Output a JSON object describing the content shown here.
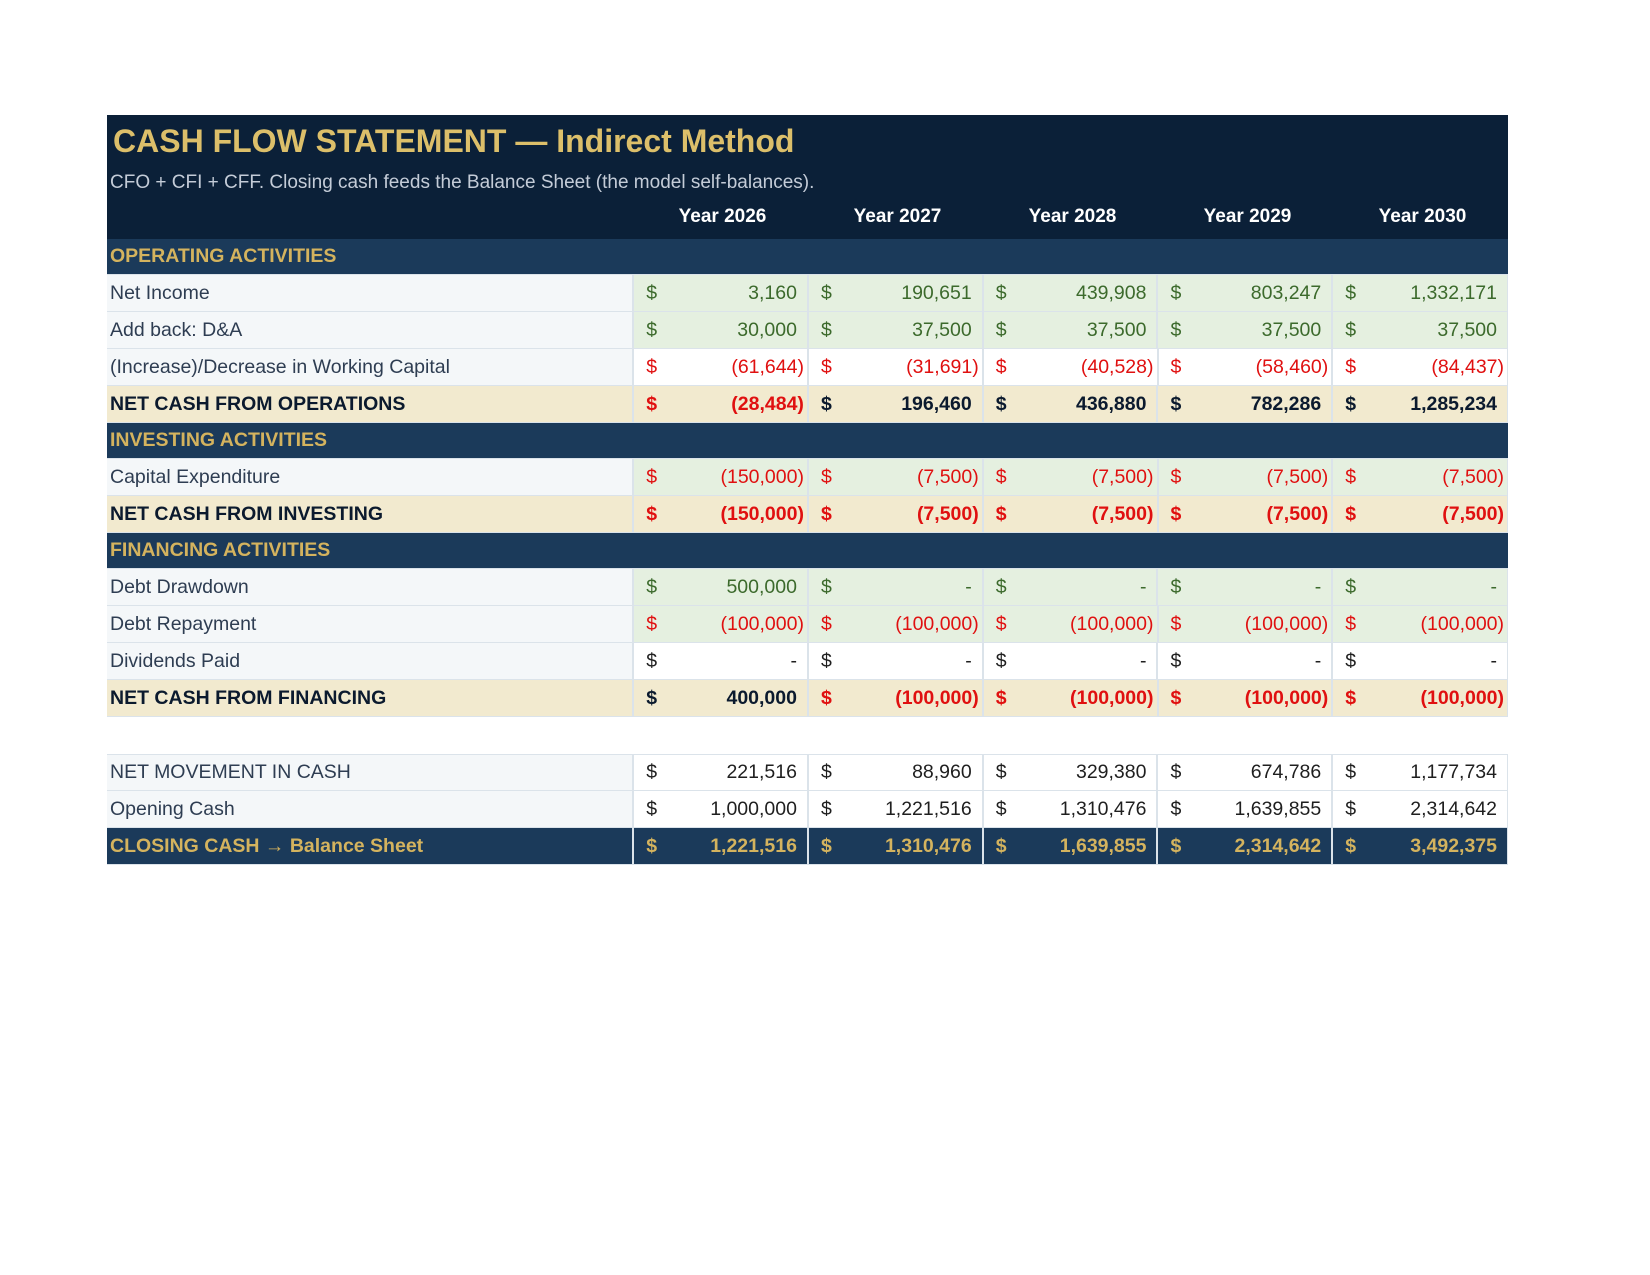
{
  "title": "CASH FLOW STATEMENT — Indirect Method",
  "subtitle": "CFO + CFI + CFF. Closing cash feeds the Balance Sheet (the model self-balances).",
  "years": [
    "Year 2026",
    "Year 2027",
    "Year 2028",
    "Year 2029",
    "Year 2030"
  ],
  "currency": "$",
  "colors": {
    "header_bg": "#0b2038",
    "section_bg": "#1b3a5a",
    "gold": "#d4b35e",
    "input_fill": "#e5f0e0",
    "input_text": "#3c6a2c",
    "negative": "#e01010",
    "total_fill": "#f2eacf"
  },
  "sections": {
    "operating": "OPERATING ACTIVITIES",
    "investing": "INVESTING ACTIVITIES",
    "financing": "FINANCING ACTIVITIES"
  },
  "rows": {
    "net_income": {
      "label": "Net Income",
      "values": [
        "3,160",
        "190,651",
        "439,908",
        "803,247",
        "1,332,171"
      ]
    },
    "da": {
      "label": "Add back: D&A",
      "values": [
        "30,000",
        "37,500",
        "37,500",
        "37,500",
        "37,500"
      ]
    },
    "wc": {
      "label": "(Increase)/Decrease in Working Capital",
      "values": [
        "(61,644)",
        "(31,691)",
        "(40,528)",
        "(58,460)",
        "(84,437)"
      ]
    },
    "cfo": {
      "label": "NET CASH FROM OPERATIONS",
      "values": [
        "(28,484)",
        "196,460",
        "436,880",
        "782,286",
        "1,285,234"
      ]
    },
    "capex": {
      "label": "Capital Expenditure",
      "values": [
        "(150,000)",
        "(7,500)",
        "(7,500)",
        "(7,500)",
        "(7,500)"
      ]
    },
    "cfi": {
      "label": "NET CASH FROM INVESTING",
      "values": [
        "(150,000)",
        "(7,500)",
        "(7,500)",
        "(7,500)",
        "(7,500)"
      ]
    },
    "debt_draw": {
      "label": "Debt Drawdown",
      "values": [
        "500,000",
        "-",
        "-",
        "-",
        "-"
      ]
    },
    "debt_repay": {
      "label": "Debt Repayment",
      "values": [
        "(100,000)",
        "(100,000)",
        "(100,000)",
        "(100,000)",
        "(100,000)"
      ]
    },
    "dividends": {
      "label": "Dividends Paid",
      "values": [
        "-",
        "-",
        "-",
        "-",
        "-"
      ]
    },
    "cff": {
      "label": "NET CASH FROM FINANCING",
      "values": [
        "400,000",
        "(100,000)",
        "(100,000)",
        "(100,000)",
        "(100,000)"
      ]
    },
    "net_movement": {
      "label": "NET MOVEMENT IN CASH",
      "values": [
        "221,516",
        "88,960",
        "329,380",
        "674,786",
        "1,177,734"
      ]
    },
    "opening_cash": {
      "label": "Opening Cash",
      "values": [
        "1,000,000",
        "1,221,516",
        "1,310,476",
        "1,639,855",
        "2,314,642"
      ]
    },
    "closing_cash": {
      "label": "CLOSING CASH  → Balance Sheet",
      "values": [
        "1,221,516",
        "1,310,476",
        "1,639,855",
        "2,314,642",
        "3,492,375"
      ]
    }
  }
}
